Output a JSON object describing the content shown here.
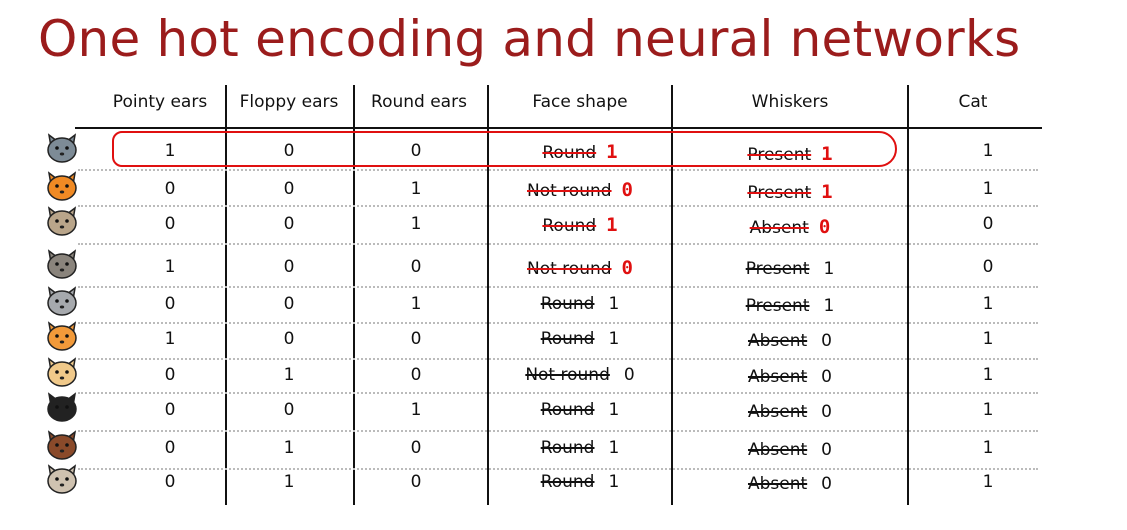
{
  "title": "One hot encoding and neural networks",
  "columns": [
    "Pointy ears",
    "Floppy ears",
    "Round ears",
    "Face shape",
    "Whiskers",
    "Cat"
  ],
  "rows": [
    {
      "animal": "grey-cat-icon",
      "pointy": "1",
      "floppy": "0",
      "round": "0",
      "face": "Round",
      "face_code": "1",
      "face_red": true,
      "whiskers": "Present",
      "whiskers_code": "1",
      "whiskers_red": true,
      "cat": "1"
    },
    {
      "animal": "orange-cat-icon",
      "pointy": "0",
      "floppy": "0",
      "round": "1",
      "face": "Not round",
      "face_code": "0",
      "face_red": true,
      "whiskers": "Present",
      "whiskers_code": "1",
      "whiskers_red": true,
      "cat": "1"
    },
    {
      "animal": "tan-dog-icon",
      "pointy": "0",
      "floppy": "0",
      "round": "1",
      "face": "Round",
      "face_code": "1",
      "face_red": true,
      "whiskers": "Absent",
      "whiskers_code": "0",
      "whiskers_red": true,
      "cat": "0"
    },
    {
      "animal": "wolf-icon",
      "pointy": "1",
      "floppy": "0",
      "round": "0",
      "face": "Not round",
      "face_code": "0",
      "face_red": true,
      "whiskers": "Present",
      "whiskers_code": "1",
      "whiskers_red": false,
      "cat": "0"
    },
    {
      "animal": "grey-mouse-cat-icon",
      "pointy": "0",
      "floppy": "0",
      "round": "1",
      "face": "Round",
      "face_code": "1",
      "face_red": false,
      "whiskers": "Present",
      "whiskers_code": "1",
      "whiskers_red": false,
      "cat": "1"
    },
    {
      "animal": "orange-white-cat-icon",
      "pointy": "1",
      "floppy": "0",
      "round": "0",
      "face": "Round",
      "face_code": "1",
      "face_red": false,
      "whiskers": "Absent",
      "whiskers_code": "0",
      "whiskers_red": false,
      "cat": "1"
    },
    {
      "animal": "beige-dog-icon",
      "pointy": "0",
      "floppy": "1",
      "round": "0",
      "face": "Not round",
      "face_code": "0",
      "face_red": false,
      "whiskers": "Absent",
      "whiskers_code": "0",
      "whiskers_red": false,
      "cat": "1"
    },
    {
      "animal": "tuxedo-cat-icon",
      "pointy": "0",
      "floppy": "0",
      "round": "1",
      "face": "Round",
      "face_code": "1",
      "face_red": false,
      "whiskers": "Absent",
      "whiskers_code": "0",
      "whiskers_red": false,
      "cat": "1"
    },
    {
      "animal": "brown-dog-icon",
      "pointy": "0",
      "floppy": "1",
      "round": "0",
      "face": "Round",
      "face_code": "1",
      "face_red": false,
      "whiskers": "Absent",
      "whiskers_code": "0",
      "whiskers_red": false,
      "cat": "1"
    },
    {
      "animal": "pug-icon",
      "pointy": "0",
      "floppy": "1",
      "round": "0",
      "face": "Round",
      "face_code": "1",
      "face_red": false,
      "whiskers": "Absent",
      "whiskers_code": "0",
      "whiskers_red": false,
      "cat": "1"
    }
  ],
  "colors": {
    "title": "#9b1c1c",
    "annotation": "#e01010"
  }
}
